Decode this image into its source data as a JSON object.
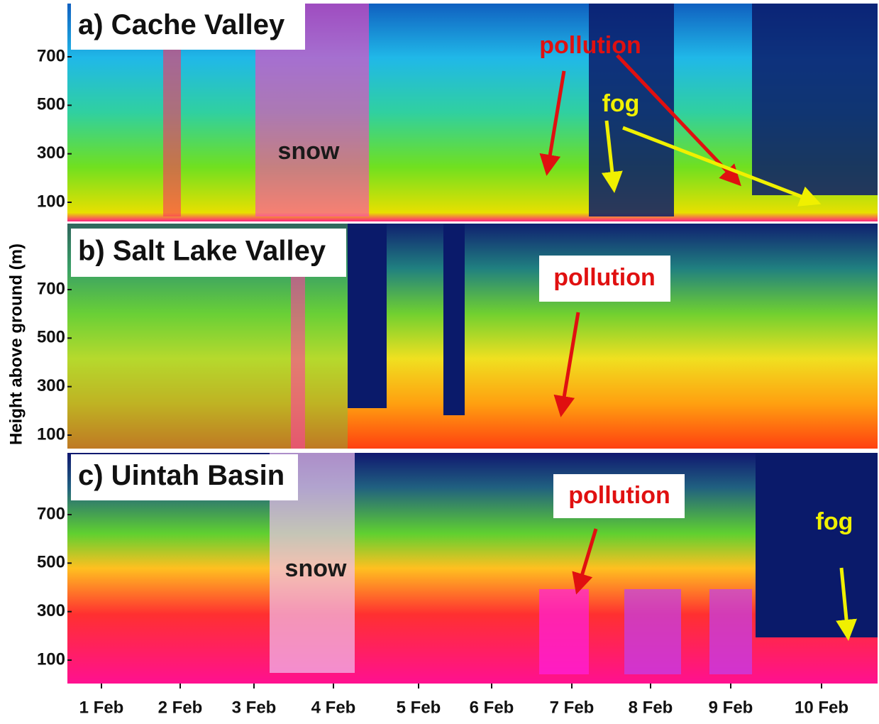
{
  "y_axis_label": "Height above ground (m)",
  "x_ticks": [
    "1 Feb",
    "2 Feb",
    "3 Feb",
    "4 Feb",
    "5 Feb",
    "6 Feb",
    "7 Feb",
    "8 Feb",
    "9 Feb",
    "10 Feb"
  ],
  "panels": [
    {
      "title": "a) Cache Valley",
      "yticks": [
        100,
        300,
        500,
        700
      ],
      "annotations": [
        {
          "text": "pollution"
        },
        {
          "text": "fog"
        },
        {
          "text": "snow"
        }
      ]
    },
    {
      "title": "b) Salt Lake Valley",
      "yticks": [
        100,
        300,
        500,
        700
      ],
      "annotations": [
        {
          "text": "pollution"
        }
      ]
    },
    {
      "title": "c) Uintah Basin",
      "yticks": [
        100,
        300,
        500,
        700
      ],
      "annotations": [
        {
          "text": "pollution"
        },
        {
          "text": "fog"
        },
        {
          "text": "snow"
        }
      ]
    }
  ]
}
